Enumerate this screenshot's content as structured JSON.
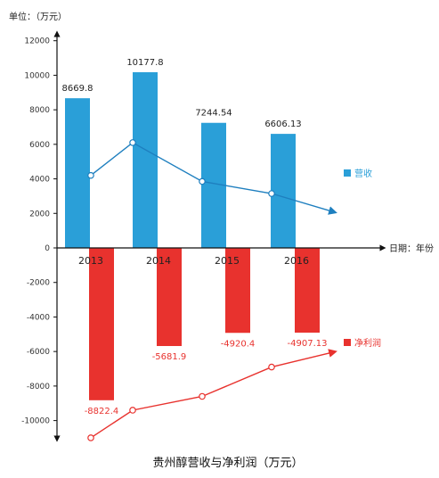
{
  "chart_data": {
    "type": "bar",
    "title": "贵州醇营收与净利润（万元）",
    "ylabel": "单位：（万元）",
    "xlabel": "日期：年份",
    "ylim": [
      -10000,
      12000
    ],
    "yticks": [
      12000,
      10000,
      8000,
      6000,
      4000,
      2000,
      0,
      -2000,
      -4000,
      -6000,
      -8000,
      -10000
    ],
    "categories": [
      "2013",
      "2014",
      "2015",
      "2016"
    ],
    "series": [
      {
        "name": "营收",
        "color": "#2a9fd8",
        "values": [
          8669.8,
          10177.8,
          7244.54,
          6606.13
        ],
        "labels": [
          "8669.8",
          "10177.8",
          "7244.54",
          "6606.13"
        ]
      },
      {
        "name": "净利润",
        "color": "#e8322e",
        "values": [
          -8822.4,
          -5681.9,
          -4920.4,
          -4907.13
        ],
        "labels": [
          "-8822.4",
          "-5681.9",
          "-4920.4",
          "-4907.13"
        ]
      }
    ],
    "trend_lines": [
      {
        "series": "营收",
        "color": "#1e7fbf",
        "y": [
          4200,
          6100,
          3850,
          3150
        ],
        "arrow_end_y": 2050
      },
      {
        "series": "净利润",
        "color": "#e8322e",
        "y": [
          -11000,
          -9400,
          -8600,
          -6900
        ],
        "arrow_end_y": -6000
      }
    ],
    "legend_position": "right",
    "grid": false
  }
}
